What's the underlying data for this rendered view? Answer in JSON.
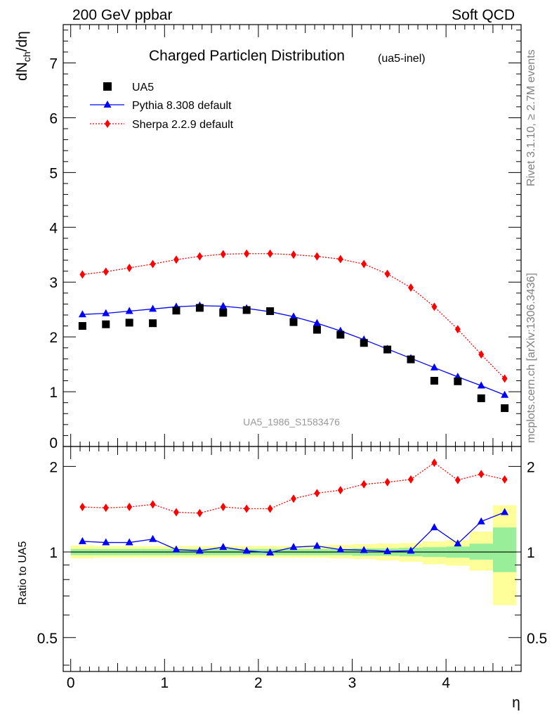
{
  "header": {
    "left": "200 GeV ppbar",
    "right": "Soft QCD"
  },
  "side_labels": {
    "rivet": "Rivet 3.1.10, ≥ 2.7M events",
    "mcplots": "mcplots.cern.ch [arXiv:1306.3436]"
  },
  "chart_data": [
    {
      "type": "scatter",
      "title": "Charged Particleη Distribution",
      "title_note": "(ua5-inel)",
      "ylabel": "dN_ch/dη",
      "xlabel": "η",
      "watermark": "UA5_1986_S1583476",
      "xlim": [
        -0.08,
        4.8
      ],
      "ylim": [
        0,
        7.7
      ],
      "yticks": [
        0,
        1,
        2,
        3,
        4,
        5,
        6,
        7
      ],
      "xticks": [
        0,
        1,
        2,
        3,
        4
      ],
      "legend_position": "top-left",
      "x": [
        0.125,
        0.375,
        0.625,
        0.875,
        1.125,
        1.375,
        1.625,
        1.875,
        2.125,
        2.375,
        2.625,
        2.875,
        3.125,
        3.375,
        3.625,
        3.875,
        4.125,
        4.375,
        4.625
      ],
      "series": [
        {
          "name": "UA5",
          "color": "#000000",
          "marker": "square",
          "line": "none",
          "values": [
            2.2,
            2.23,
            2.26,
            2.25,
            2.48,
            2.53,
            2.44,
            2.49,
            2.47,
            2.27,
            2.13,
            2.04,
            1.89,
            1.77,
            1.59,
            1.2,
            1.19,
            0.88,
            0.7
          ]
        },
        {
          "name": "Pythia 8.308 default",
          "color": "#0000ff",
          "marker": "triangle",
          "line": "solid",
          "values": [
            2.41,
            2.43,
            2.47,
            2.51,
            2.55,
            2.57,
            2.56,
            2.52,
            2.46,
            2.37,
            2.25,
            2.11,
            1.95,
            1.78,
            1.61,
            1.44,
            1.27,
            1.11,
            0.94
          ]
        },
        {
          "name": "Sherpa 2.2.9 default",
          "color": "#ff0000",
          "marker": "diamond",
          "line": "dotted",
          "values": [
            3.14,
            3.19,
            3.26,
            3.33,
            3.41,
            3.47,
            3.51,
            3.52,
            3.52,
            3.5,
            3.47,
            3.42,
            3.33,
            3.15,
            2.9,
            2.55,
            2.14,
            1.68,
            1.24
          ]
        }
      ]
    },
    {
      "type": "scatter",
      "ylabel": "Ratio to UA5",
      "xlabel": "η",
      "xlim": [
        -0.08,
        4.8
      ],
      "ylim": [
        0.38,
        2.35
      ],
      "yscale": "log",
      "yticks": [
        0.5,
        1,
        2
      ],
      "ytick_labels": [
        "0.5",
        "1",
        "2"
      ],
      "xticks": [
        0,
        1,
        2,
        3,
        4
      ],
      "x": [
        0.125,
        0.375,
        0.625,
        0.875,
        1.125,
        1.375,
        1.625,
        1.875,
        2.125,
        2.375,
        2.625,
        2.875,
        3.125,
        3.375,
        3.625,
        3.875,
        4.125,
        4.375,
        4.625
      ],
      "bands": {
        "yellow_color": "#ffff99",
        "green_color": "#99ee99",
        "yellow_lo": [
          0.95,
          0.955,
          0.955,
          0.955,
          0.955,
          0.955,
          0.955,
          0.955,
          0.955,
          0.955,
          0.955,
          0.95,
          0.945,
          0.935,
          0.925,
          0.905,
          0.895,
          0.86,
          0.65
        ],
        "yellow_hi": [
          1.055,
          1.05,
          1.05,
          1.05,
          1.05,
          1.05,
          1.05,
          1.05,
          1.05,
          1.05,
          1.055,
          1.06,
          1.065,
          1.07,
          1.075,
          1.09,
          1.1,
          1.18,
          1.46
        ],
        "green_lo": [
          0.975,
          0.975,
          0.975,
          0.975,
          0.975,
          0.975,
          0.975,
          0.975,
          0.975,
          0.975,
          0.975,
          0.975,
          0.97,
          0.97,
          0.965,
          0.96,
          0.955,
          0.94,
          0.85
        ],
        "green_hi": [
          1.025,
          1.025,
          1.025,
          1.025,
          1.025,
          1.025,
          1.025,
          1.025,
          1.025,
          1.025,
          1.025,
          1.025,
          1.03,
          1.03,
          1.035,
          1.04,
          1.045,
          1.07,
          1.22
        ]
      },
      "series": [
        {
          "name": "Pythia 8.308 default",
          "color": "#0000ff",
          "marker": "triangle",
          "line": "solid",
          "values": [
            1.09,
            1.08,
            1.08,
            1.11,
            1.02,
            1.01,
            1.04,
            1.01,
            0.995,
            1.04,
            1.05,
            1.02,
            1.015,
            1.005,
            1.01,
            1.22,
            1.07,
            1.28,
            1.38
          ]
        },
        {
          "name": "Sherpa 2.2.9 default",
          "color": "#ff0000",
          "marker": "diamond",
          "line": "dotted",
          "values": [
            1.44,
            1.43,
            1.44,
            1.47,
            1.38,
            1.37,
            1.44,
            1.42,
            1.42,
            1.54,
            1.61,
            1.65,
            1.73,
            1.76,
            1.8,
            2.06,
            1.79,
            1.88,
            1.8
          ]
        }
      ]
    }
  ]
}
